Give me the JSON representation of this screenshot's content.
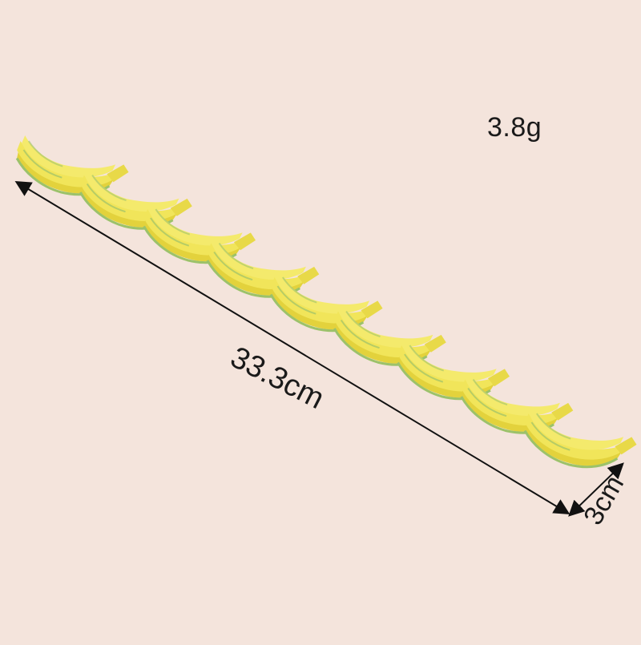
{
  "product": {
    "weight": "3.8g",
    "length": "33.3cm",
    "width": "3cm"
  },
  "colors": {
    "background": "#f4e4dc",
    "banana_yellow": "#f1e55a",
    "banana_shadow": "#e3d23c",
    "banana_green": "#9cc26a",
    "arrow": "#111111"
  },
  "motif": {
    "count": 9,
    "icon": "banana-bunch-icon"
  }
}
